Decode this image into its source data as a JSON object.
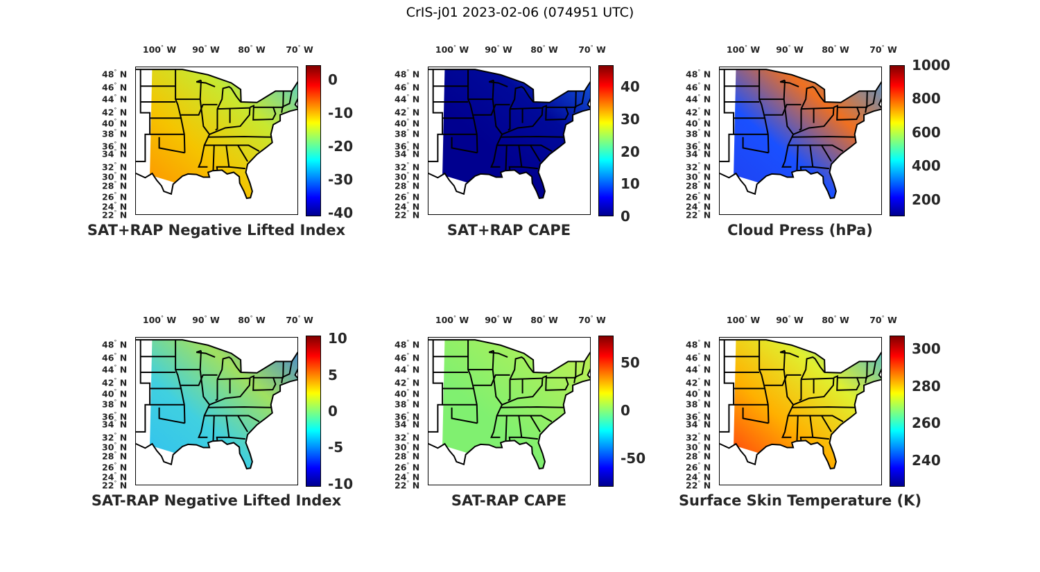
{
  "figure_title": "CrIS-j01 2023-02-06 (074951 UTC)",
  "lon_labels": [
    "100",
    "90",
    "80",
    "70"
  ],
  "lon_suffix": "W",
  "lat_labels": [
    "48",
    "46",
    "44",
    "42",
    "40",
    "38",
    "36",
    "34",
    "32",
    "30",
    "28",
    "26",
    "24",
    "22"
  ],
  "lat_suffix": "N",
  "degree_symbol": "°",
  "panels": [
    {
      "title": "SAT+RAP Negative Lifted Index",
      "colorbar": {
        "min": -41,
        "max": 4.4,
        "ticks": [
          "0",
          "-10",
          "-20",
          "-30",
          "-40"
        ]
      },
      "field_colors": [
        "#ff8c00",
        "#f5c400",
        "#c8e830",
        "#3cc8f0"
      ]
    },
    {
      "title": "SAT+RAP CAPE",
      "colorbar": {
        "min": 0,
        "max": 46.7,
        "ticks": [
          "40",
          "30",
          "20",
          "10",
          "0"
        ]
      },
      "field_colors": [
        "#00008f",
        "#00008f",
        "#000a9a",
        "#1a6cf0"
      ]
    },
    {
      "title": "Cloud Press (hPa)",
      "colorbar": {
        "min": 100,
        "max": 1000,
        "ticks": [
          "1000",
          "800",
          "600",
          "400",
          "200"
        ]
      },
      "field_colors": [
        "#2040f0",
        "#1a50ff",
        "#f07020",
        "#30a0ff"
      ]
    },
    {
      "title": "SAT-RAP Negative Lifted Index",
      "colorbar": {
        "min": -10.4,
        "max": 10.4,
        "ticks": [
          "10",
          "5",
          "0",
          "-5",
          "-10"
        ]
      },
      "field_colors": [
        "#30c0f0",
        "#40d0e0",
        "#a0e060",
        "#3070f0"
      ]
    },
    {
      "title": "SAT-RAP CAPE",
      "colorbar": {
        "min": -80,
        "max": 78,
        "ticks": [
          "50",
          "0",
          "-50"
        ]
      },
      "field_colors": [
        "#80f070",
        "#80f070",
        "#a0f060",
        "#c8ee50"
      ]
    },
    {
      "title": "Surface Skin Temperature (K)",
      "colorbar": {
        "min": 226,
        "max": 307,
        "ticks": [
          "300",
          "280",
          "260",
          "240"
        ]
      },
      "field_colors": [
        "#ff3010",
        "#ffb000",
        "#e0f030",
        "#30b0f0"
      ]
    }
  ]
}
